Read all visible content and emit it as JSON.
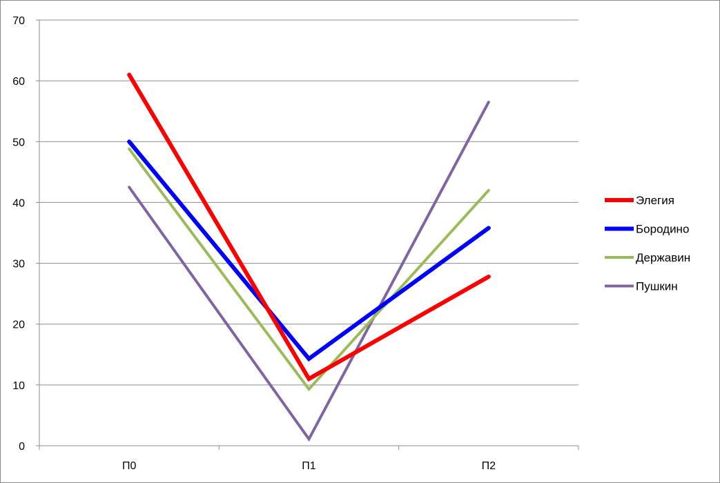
{
  "chart_data": {
    "type": "line",
    "title": "",
    "xlabel": "",
    "ylabel": "",
    "categories": [
      "П0",
      "П1",
      "П2"
    ],
    "ylim": [
      0,
      70
    ],
    "yticks": [
      0,
      10,
      20,
      30,
      40,
      50,
      60,
      70
    ],
    "grid": true,
    "legend_position": "right",
    "series": [
      {
        "name": "Элегия",
        "color": "#ff0000",
        "values": [
          61,
          11,
          27.8
        ]
      },
      {
        "name": "Бородино",
        "color": "#0000ff",
        "values": [
          50,
          14.3,
          35.8
        ]
      },
      {
        "name": "Державин",
        "color": "#9bbb59",
        "values": [
          48.8,
          9.3,
          42
        ]
      },
      {
        "name": "Пушкин",
        "color": "#8064a2",
        "values": [
          42.5,
          1.1,
          56.5
        ]
      }
    ]
  }
}
